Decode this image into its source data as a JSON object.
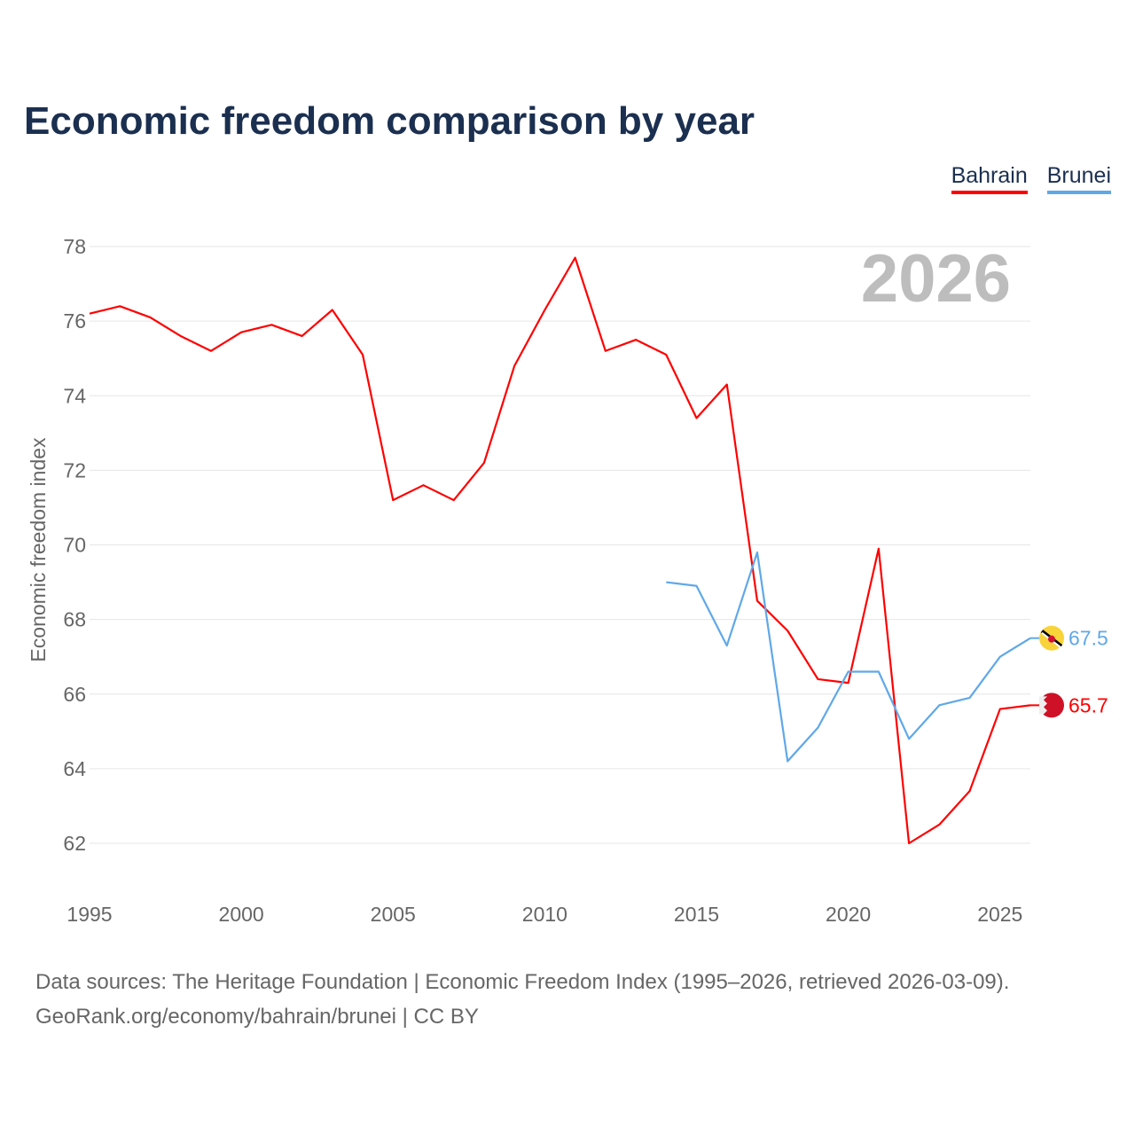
{
  "chart_data": {
    "type": "line",
    "title": "Economic freedom comparison by year",
    "ylabel": "Economic freedom index",
    "xlabel": "",
    "xlim": [
      1995,
      2026
    ],
    "ylim": [
      62,
      78
    ],
    "yticks": [
      62,
      64,
      66,
      68,
      70,
      72,
      74,
      76,
      78
    ],
    "xticks": [
      1995,
      2000,
      2005,
      2010,
      2015,
      2020,
      2025
    ],
    "grid": true,
    "legend_position": "top-right",
    "year_watermark": "2026",
    "series": [
      {
        "name": "Bahrain",
        "color": "#ff0000",
        "end_label": "65.7",
        "x": [
          1995,
          1996,
          1997,
          1998,
          1999,
          2000,
          2001,
          2002,
          2003,
          2004,
          2005,
          2006,
          2007,
          2008,
          2009,
          2010,
          2011,
          2012,
          2013,
          2014,
          2015,
          2016,
          2017,
          2018,
          2019,
          2020,
          2021,
          2022,
          2023,
          2024,
          2025,
          2026
        ],
        "values": [
          76.2,
          76.4,
          76.1,
          75.6,
          75.2,
          75.7,
          75.9,
          75.6,
          76.3,
          75.1,
          71.2,
          71.6,
          71.2,
          72.2,
          74.8,
          76.3,
          77.7,
          75.2,
          75.5,
          75.1,
          73.4,
          74.3,
          68.5,
          67.7,
          66.4,
          66.3,
          69.9,
          62.0,
          62.5,
          63.4,
          65.6,
          65.7
        ]
      },
      {
        "name": "Brunei",
        "color": "#5fa8e8",
        "end_label": "67.5",
        "x": [
          2014,
          2015,
          2016,
          2017,
          2018,
          2019,
          2020,
          2021,
          2022,
          2023,
          2024,
          2025,
          2026
        ],
        "values": [
          69.0,
          68.9,
          67.3,
          69.8,
          64.2,
          65.1,
          66.6,
          66.6,
          64.8,
          65.7,
          65.9,
          67.0,
          67.5
        ]
      }
    ]
  },
  "source": {
    "line1": "Data sources: The Heritage Foundation | Economic Freedom Index (1995–2026, retrieved 2026-03-09).",
    "line2": "GeoRank.org/economy/bahrain/brunei | CC BY"
  }
}
